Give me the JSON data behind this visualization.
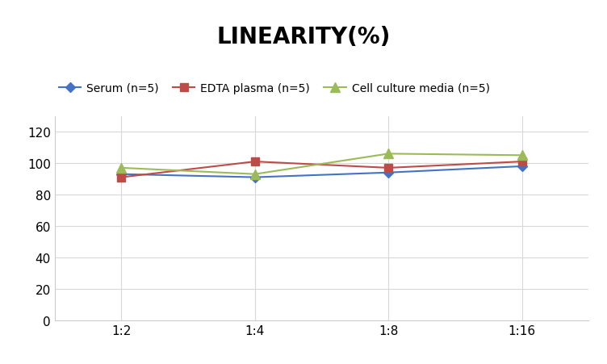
{
  "title": "LINEARITY(%)",
  "x_labels": [
    "1:2",
    "1:4",
    "1:8",
    "1:16"
  ],
  "x_positions": [
    0,
    1,
    2,
    3
  ],
  "series": [
    {
      "label": "Serum (n=5)",
      "values": [
        93,
        91,
        94,
        98
      ],
      "color": "#4472C4",
      "marker": "D",
      "markersize": 6,
      "linewidth": 1.5
    },
    {
      "label": "EDTA plasma (n=5)",
      "values": [
        91,
        101,
        97,
        101
      ],
      "color": "#BE4B48",
      "marker": "s",
      "markersize": 7,
      "linewidth": 1.5
    },
    {
      "label": "Cell culture media (n=5)",
      "values": [
        97,
        93,
        106,
        105
      ],
      "color": "#9BBB59",
      "marker": "^",
      "markersize": 8,
      "linewidth": 1.5
    }
  ],
  "ylim": [
    0,
    130
  ],
  "yticks": [
    0,
    20,
    40,
    60,
    80,
    100,
    120
  ],
  "grid_color": "#D8D8D8",
  "background_color": "#FFFFFF",
  "title_fontsize": 20,
  "title_fontweight": "bold",
  "legend_fontsize": 10,
  "tick_fontsize": 11
}
